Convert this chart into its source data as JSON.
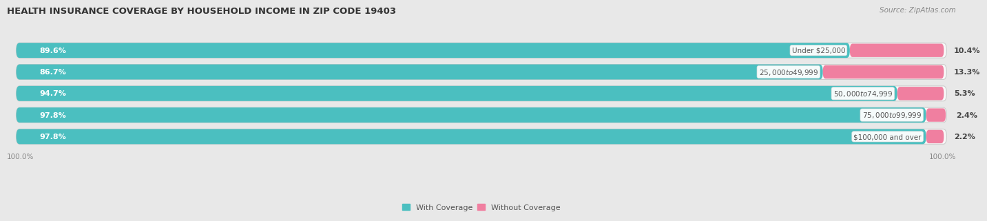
{
  "title": "HEALTH INSURANCE COVERAGE BY HOUSEHOLD INCOME IN ZIP CODE 19403",
  "source": "Source: ZipAtlas.com",
  "categories": [
    "Under $25,000",
    "$25,000 to $49,999",
    "$50,000 to $74,999",
    "$75,000 to $99,999",
    "$100,000 and over"
  ],
  "with_coverage": [
    89.6,
    86.7,
    94.7,
    97.8,
    97.8
  ],
  "without_coverage": [
    10.4,
    13.3,
    5.3,
    2.4,
    2.2
  ],
  "color_with": "#4BBFC0",
  "color_without": "#F07FA0",
  "bg_color": "#e8e8e8",
  "bar_bg": "#f8f8f8",
  "title_fontsize": 9.5,
  "label_fontsize": 8.0,
  "cat_fontsize": 7.5,
  "tick_fontsize": 7.5,
  "source_fontsize": 7.5,
  "legend_fontsize": 8.0
}
